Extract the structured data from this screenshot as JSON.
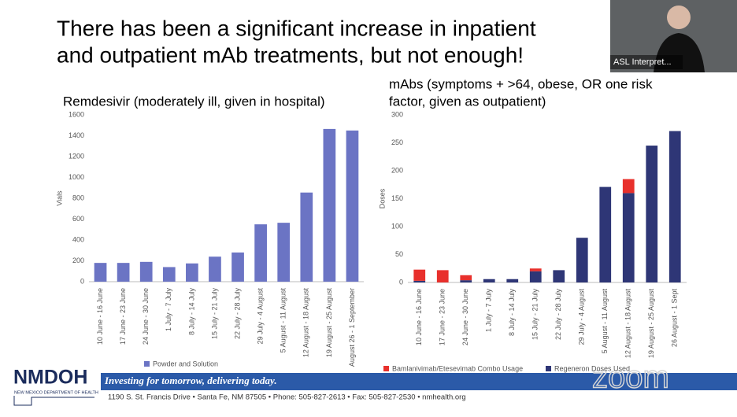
{
  "slide_title": [
    "There has been a significant increase in inpatient",
    "and outpatient mAb treatments, but not enough!"
  ],
  "webcam_label": "ASL Interpret...",
  "footer": {
    "logo": "NMDOH",
    "logo_subtitle": "NEW MEXICO DEPARTMENT OF HEALTH",
    "banner": "Investing for tomorrow, delivering today.",
    "address": "1190 S. St. Francis Drive • Santa Fe, NM 87505 • Phone: 505-827-2613 • Fax: 505-827-2530 • nmhealth.org",
    "watermark": "zoom"
  },
  "chart_data": [
    {
      "type": "bar",
      "title": [
        "Remdesivir (moderately ill, given in hospital)"
      ],
      "y_label": "Vials",
      "categories": [
        "10 June - 16 June",
        "17 June - 23 June",
        "24 June - 30 June",
        "1 July - 7 July",
        "8 July - 14 July",
        "15 July - 21 July",
        "22 July - 28 July",
        "29 July - 4 August",
        "5 August - 11 August",
        "12 August - 18 August",
        "19 August - 25 August",
        "August 26 - 1 September"
      ],
      "series": [
        {
          "name": "Powder and Solution",
          "color": "#6b74c4",
          "values": [
            180,
            180,
            190,
            140,
            175,
            240,
            280,
            550,
            565,
            855,
            1465,
            1450
          ]
        }
      ],
      "ylim": [
        0,
        1600
      ],
      "yticks": [
        0,
        200,
        400,
        600,
        800,
        1000,
        1200,
        1400,
        1600
      ],
      "grid": false
    },
    {
      "type": "stacked_bar",
      "title": [
        "mAbs (symptoms + >64, obese, OR one risk",
        "factor, given as outpatient)"
      ],
      "y_label": "Doses",
      "categories": [
        "10 June - 16 June",
        "17 June - 23 June",
        "24 June - 30 June",
        "1 July - 7 July",
        "8 July - 14 July",
        "15 July - 21 July",
        "22 July - 28 July",
        "29 July - 4 August",
        "5 August - 11 August",
        "12 August - 18 August",
        "19 August - 25 August",
        "26 August - 1 Sept"
      ],
      "series": [
        {
          "name": "Bamlanivimab/Etesevimab Combo Usage",
          "color": "#e8302c",
          "values": [
            20,
            22,
            9,
            0,
            0,
            5,
            0,
            0,
            0,
            25,
            0,
            0
          ]
        },
        {
          "name": "Regeneron Doses Used",
          "color": "#2e3676",
          "values": [
            3,
            0,
            4,
            6,
            6,
            20,
            22,
            80,
            171,
            160,
            245,
            271
          ]
        }
      ],
      "ylim": [
        0,
        300
      ],
      "yticks": [
        0,
        50,
        100,
        150,
        200,
        250,
        300
      ],
      "grid": false
    }
  ]
}
